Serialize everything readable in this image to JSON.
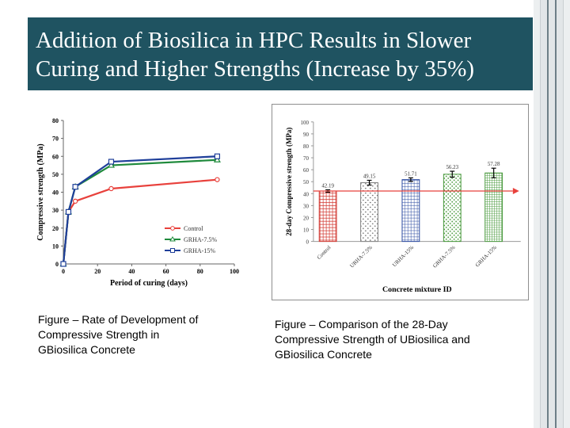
{
  "title": "Addition of Biosilica in HPC Results in Slower\nCuring and Higher Strengths (Increase by 35%)",
  "captions": {
    "left": "Figure – Rate of Development of\nCompressive Strength in\nGBiosilica Concrete",
    "right": "Figure –  Comparison of the 28-Day\nCompressive Strength of UBiosilica and\nGBiosilica Concrete"
  },
  "chart_data": [
    {
      "type": "line",
      "xlabel": "Period of curing (days)",
      "ylabel": "Compressive strength (MPa)",
      "xlim": [
        0,
        100
      ],
      "ylim": [
        0,
        80
      ],
      "xticks": [
        0,
        20,
        40,
        60,
        80,
        100
      ],
      "yticks": [
        0,
        10,
        20,
        30,
        40,
        50,
        60,
        70,
        80
      ],
      "grid": false,
      "legend_position": "bottom-right",
      "series": [
        {
          "name": "Control",
          "color": "#e8413c",
          "marker": "circle",
          "x": [
            0,
            3,
            7,
            28,
            90
          ],
          "y": [
            0,
            29,
            35,
            42,
            47
          ]
        },
        {
          "name": "GRHA-7.5%",
          "color": "#1f8a3c",
          "marker": "triangle",
          "x": [
            0,
            3,
            7,
            28,
            90
          ],
          "y": [
            0,
            29,
            43,
            55,
            58
          ]
        },
        {
          "name": "GRHA-15%",
          "color": "#1f3f9a",
          "marker": "square",
          "x": [
            0,
            3,
            7,
            28,
            90
          ],
          "y": [
            0,
            29,
            43,
            57,
            60
          ]
        }
      ]
    },
    {
      "type": "bar",
      "xlabel": "Concrete mixture ID",
      "ylabel": "28-day Compressive strength (MPa)",
      "ylim": [
        0,
        100
      ],
      "yticks": [
        0,
        10,
        20,
        30,
        40,
        50,
        60,
        70,
        80,
        90,
        100
      ],
      "grid": false,
      "categories": [
        "Control",
        "URHA-7.5%",
        "URHA-15%",
        "GRHA-7.5%",
        "GRHA-15%"
      ],
      "values": [
        42.19,
        49.15,
        51.71,
        56.23,
        57.28
      ],
      "value_labels": [
        "42.19",
        "49.15",
        "51.71",
        "56.23",
        "57.28"
      ],
      "error": [
        1,
        2,
        1.5,
        2.5,
        4
      ],
      "colors": [
        "#d23a33",
        "#7f7f7f",
        "#2b4aa0",
        "#4a9a3e",
        "#4a9a3e"
      ],
      "reference_line": {
        "value": 42.19,
        "color": "#e8413c"
      }
    }
  ]
}
